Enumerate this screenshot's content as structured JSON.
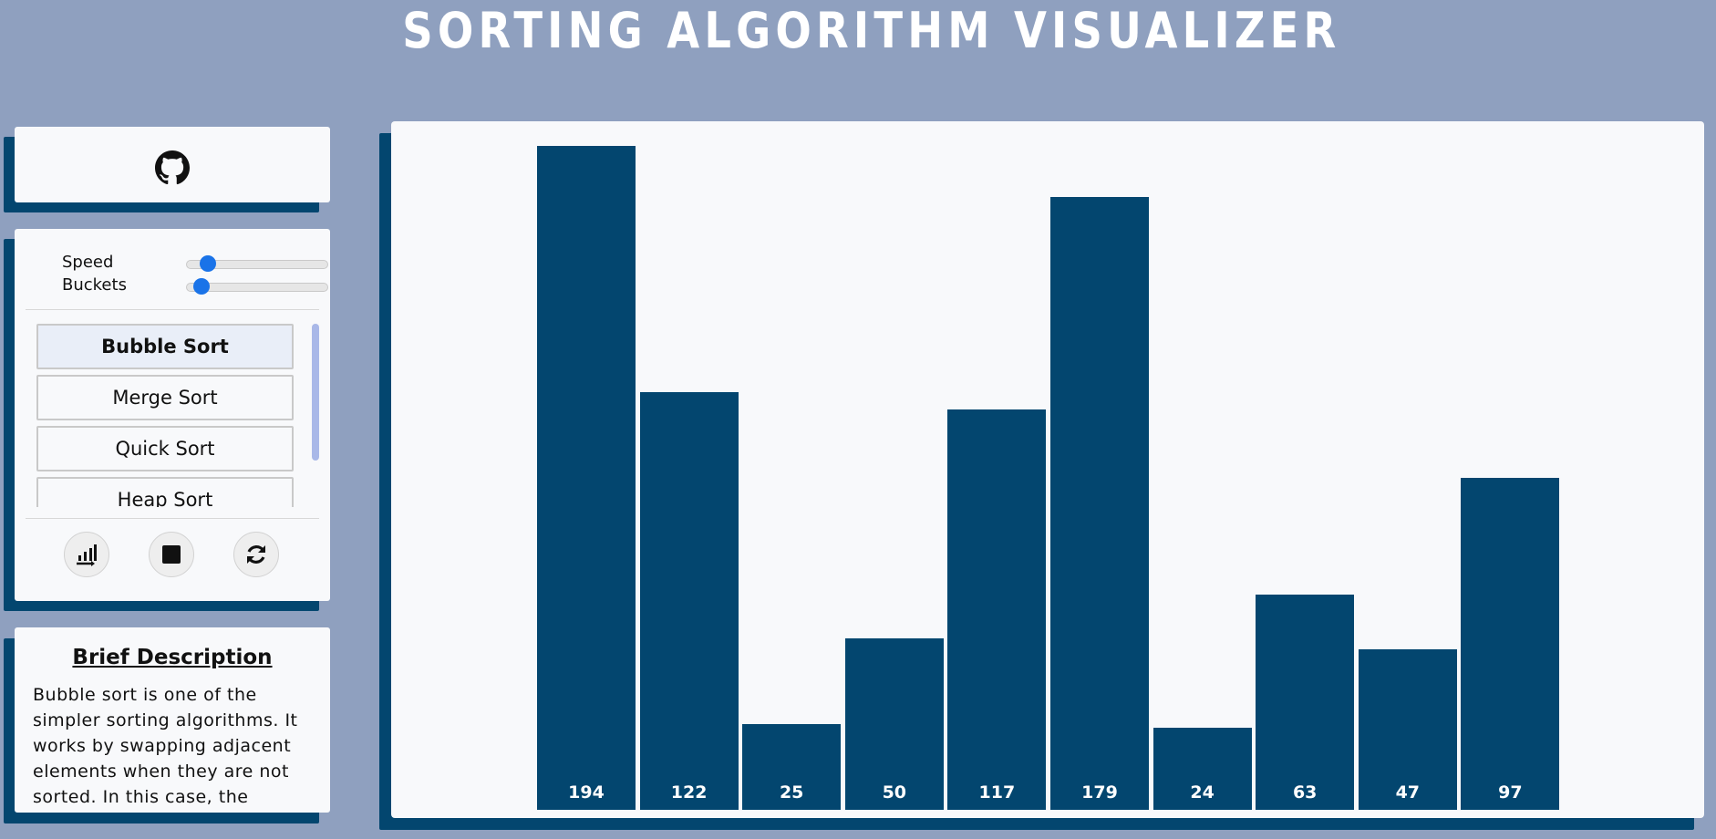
{
  "app": {
    "title": "SORTING ALGORITHM VISUALIZER"
  },
  "colors": {
    "background": "#8fa0bf",
    "card": "#f8f9fb",
    "accent": "#03466f",
    "slider": "#1a73e8"
  },
  "github": {
    "icon": "github-icon"
  },
  "controls": {
    "speed_label": "Speed",
    "speed_value": 0.1,
    "buckets_label": "Buckets",
    "buckets_value": 0.05,
    "algorithms": [
      {
        "label": "Bubble Sort",
        "selected": true
      },
      {
        "label": "Merge Sort",
        "selected": false
      },
      {
        "label": "Quick Sort",
        "selected": false
      },
      {
        "label": "Heap Sort",
        "selected": false
      }
    ],
    "buttons": [
      {
        "name": "sort-start-button",
        "icon": "sort-start-icon"
      },
      {
        "name": "stop-button",
        "icon": "stop-icon"
      },
      {
        "name": "reset-button",
        "icon": "refresh-icon"
      }
    ]
  },
  "description": {
    "heading": "Brief Description",
    "text": "Bubble sort is one of the simpler sorting algorithms. It works by swapping adjacent elements when they are not sorted. In this case, the"
  },
  "chart_data": {
    "type": "bar",
    "categories": [
      "194",
      "122",
      "25",
      "50",
      "117",
      "179",
      "24",
      "63",
      "47",
      "97"
    ],
    "values": [
      194,
      122,
      25,
      50,
      117,
      179,
      24,
      63,
      47,
      97
    ],
    "ylim": [
      0,
      194
    ],
    "grid": false
  }
}
